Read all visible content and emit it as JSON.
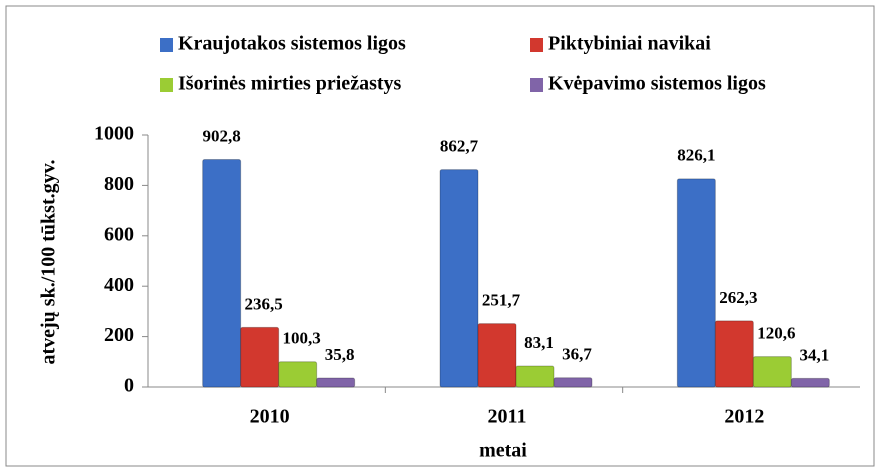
{
  "chart_data": {
    "type": "bar",
    "x_label": "metai",
    "y_label": "atvejų sk./100 tūkst.gyv.",
    "categories": [
      "2010",
      "2011",
      "2012"
    ],
    "series": [
      {
        "name": "Kraujotakos sistemos ligos",
        "color": "#3c6fc6",
        "values": [
          902.8,
          862.7,
          826.1
        ],
        "value_labels": [
          "902,8",
          "862,7",
          "826,1"
        ]
      },
      {
        "name": "Piktybiniai navikai",
        "color": "#d2382e",
        "values": [
          236.5,
          251.7,
          262.3
        ],
        "value_labels": [
          "236,5",
          "251,7",
          "262,3"
        ]
      },
      {
        "name": "Išorinės mirties priežastys",
        "color": "#9bcc34",
        "values": [
          100.3,
          83.1,
          120.6
        ],
        "value_labels": [
          "100,3",
          "83,1",
          "120,6"
        ]
      },
      {
        "name": "Kvėpavimo sistemos ligos",
        "color": "#8064a8",
        "values": [
          35.8,
          36.7,
          34.1
        ],
        "value_labels": [
          "35,8",
          "36,7",
          "34,1"
        ]
      }
    ],
    "ylim": [
      0,
      1000
    ],
    "yticks": [
      0,
      200,
      400,
      600,
      800,
      1000
    ],
    "grid": false,
    "legend": "top"
  }
}
